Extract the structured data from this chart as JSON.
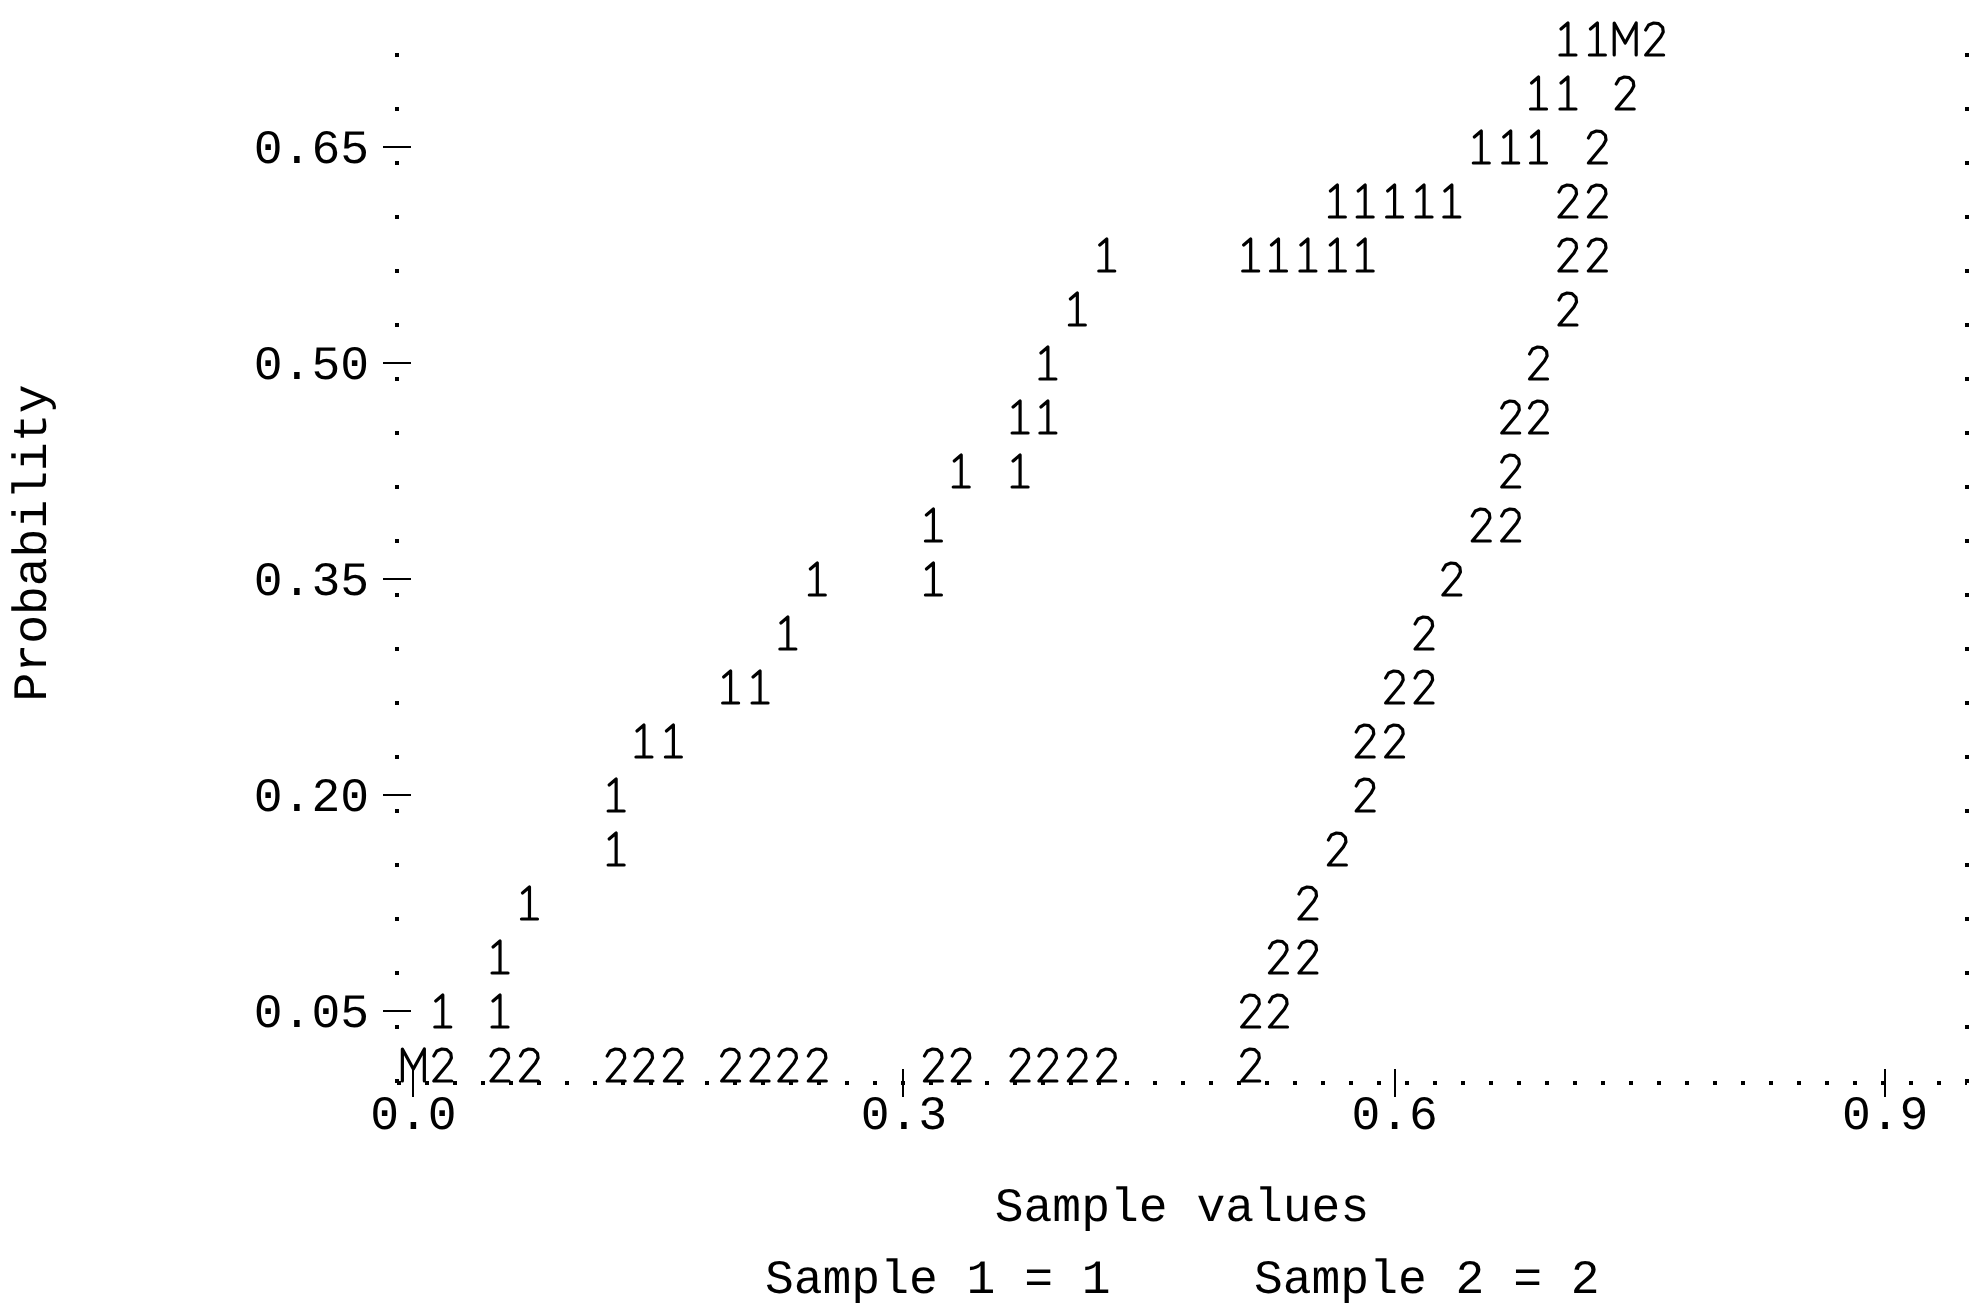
{
  "chart_data": {
    "type": "scatter",
    "xlabel": "Sample values",
    "ylabel": "Probability",
    "xlim": [
      -0.01,
      0.95
    ],
    "ylim": [
      0,
      0.75
    ],
    "xticks": [
      {
        "value": 0,
        "label": "0.0"
      },
      0.3,
      0.6,
      0.9
    ],
    "yticks": [
      0.05,
      {
        "value": 0.2,
        "label": "0.20"
      },
      0.35,
      {
        "value": 0.5,
        "label": "0.50"
      },
      0.65
    ],
    "series": [
      {
        "color": "#000000",
        "x": [
          0.706,
          0.724,
          0.688,
          0.706,
          0.653,
          0.671,
          0.688,
          0.565,
          0.582,
          0.6,
          0.618,
          0.635,
          0.424,
          0.512,
          0.529,
          0.547,
          0.565,
          0.582,
          0.406,
          0.388,
          0.371,
          0.388,
          0.335,
          0.371,
          0.318,
          0.247,
          0.318,
          0.229,
          0.194,
          0.212,
          0.141,
          0.159,
          0.124,
          0.124,
          0.071,
          0.053,
          0.018,
          0.053
        ],
        "values": [
          0.725,
          0.725,
          0.6875,
          0.6875,
          0.65,
          0.65,
          0.65,
          0.6125,
          0.6125,
          0.6125,
          0.6125,
          0.6125,
          0.575,
          0.575,
          0.575,
          0.575,
          0.575,
          0.575,
          0.5375,
          0.5,
          0.4625,
          0.4625,
          0.425,
          0.425,
          0.3875,
          0.35,
          0.35,
          0.3125,
          0.275,
          0.275,
          0.2375,
          0.2375,
          0.2,
          0.1625,
          0.125,
          0.0875,
          0.05,
          0.05
        ]
      },
      {
        "color": "#000000",
        "x": [
          0.759,
          0.741,
          0.724,
          0.706,
          0.724,
          0.706,
          0.724,
          0.706,
          0.688,
          0.671,
          0.688,
          0.671,
          0.653,
          0.671,
          0.635,
          0.618,
          0.6,
          0.618,
          0.582,
          0.6,
          0.582,
          0.565,
          0.547,
          0.529,
          0.547,
          0.512,
          0.529,
          0.018,
          0.053,
          0.071,
          0.124,
          0.141,
          0.159,
          0.194,
          0.212,
          0.229,
          0.247,
          0.318,
          0.335,
          0.371,
          0.388,
          0.406,
          0.424,
          0.512
        ],
        "values": [
          0.725,
          0.6875,
          0.65,
          0.6125,
          0.6125,
          0.575,
          0.575,
          0.5375,
          0.5,
          0.4625,
          0.4625,
          0.425,
          0.3875,
          0.3875,
          0.35,
          0.3125,
          0.275,
          0.275,
          0.2375,
          0.2375,
          0.2,
          0.1625,
          0.125,
          0.0875,
          0.0875,
          0.05,
          0.05,
          0.0125,
          0.0125,
          0.0125,
          0.0125,
          0.0125,
          0.0125,
          0.0125,
          0.0125,
          0.0125,
          0.0125,
          0.0125,
          0.0125,
          0.0125,
          0.0125,
          0.0125,
          0.0125,
          0.0125
        ]
      },
      {
        "color": "#000000",
        "x": [
          0.741,
          0
        ],
        "values": [
          0.725,
          0.0125
        ]
      }
    ],
    "annotations": [
      "Sample 1 = 1",
      "Sample 2 = 2"
    ]
  }
}
